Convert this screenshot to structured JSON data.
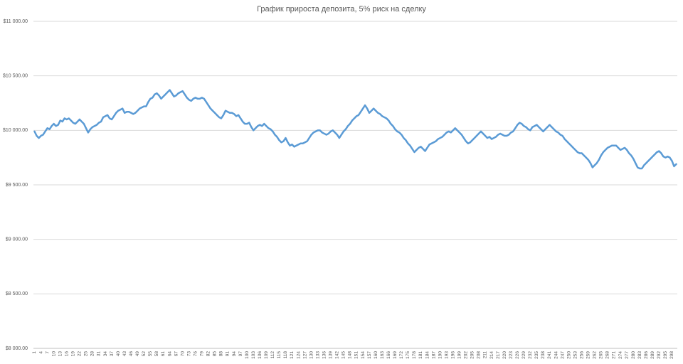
{
  "chart_data": {
    "type": "line",
    "title": "График прироста депозита, 5% риск на сделку",
    "categories": [
      1,
      null,
      null,
      4,
      null,
      null,
      7,
      null,
      null,
      10,
      null,
      null,
      13,
      null,
      null,
      16,
      null,
      null,
      19,
      null,
      null,
      22,
      null,
      null,
      25,
      null,
      null,
      28,
      null,
      null,
      31,
      null,
      null,
      34,
      null,
      null,
      37,
      null,
      null,
      40,
      null,
      null,
      43,
      null,
      null,
      46,
      null,
      null,
      49,
      null,
      null,
      52,
      null,
      null,
      55,
      null,
      null,
      58,
      null,
      null,
      61,
      null,
      null,
      64,
      null,
      null,
      67,
      null,
      null,
      70,
      null,
      null,
      73,
      null,
      null,
      76,
      null,
      null,
      79,
      null,
      null,
      82,
      null,
      null,
      85,
      null,
      null,
      88,
      null,
      null,
      91,
      null,
      null,
      94,
      null,
      null,
      97,
      null,
      null,
      100,
      null,
      null,
      103,
      null,
      null,
      106,
      null,
      null,
      109,
      null,
      null,
      112,
      null,
      null,
      115,
      null,
      null,
      118,
      null,
      null,
      121,
      null,
      null,
      124,
      null,
      null,
      127,
      null,
      null,
      130,
      null,
      null,
      133,
      null,
      null,
      136,
      null,
      null,
      139,
      null,
      null,
      142,
      null,
      null,
      145,
      null,
      null,
      148,
      null,
      null,
      151,
      null,
      null,
      154,
      null,
      null,
      157,
      null,
      null,
      160,
      null,
      null,
      163,
      null,
      null,
      166,
      null,
      null,
      169,
      null,
      null,
      172,
      null,
      null,
      175,
      null,
      null,
      178,
      null,
      null,
      181,
      null,
      null,
      184,
      null,
      null,
      187,
      null,
      null,
      190,
      null,
      null,
      193,
      null,
      null,
      196,
      null,
      null,
      199,
      null,
      null,
      202,
      null,
      null,
      205,
      null,
      null,
      208,
      null,
      null,
      211,
      null,
      null,
      214,
      null,
      null,
      217,
      null,
      null,
      220,
      null,
      null,
      223,
      null,
      null,
      226,
      null,
      null,
      229,
      null,
      null,
      232,
      null,
      null,
      235,
      null,
      null,
      238,
      null,
      null,
      241,
      null,
      null,
      244,
      null,
      null,
      247,
      null,
      null,
      250,
      null,
      null,
      253,
      null,
      null,
      256,
      null,
      null,
      259,
      null,
      null,
      262,
      null,
      null,
      265,
      null,
      null,
      268,
      null,
      null,
      271,
      null,
      null,
      274,
      null,
      null,
      277,
      null,
      null,
      280,
      null,
      null,
      283,
      null,
      null,
      286,
      null,
      null,
      289,
      null,
      null,
      292,
      null,
      null,
      295,
      null,
      null,
      298,
      null,
      null
    ],
    "series": [
      {
        "color": "#5b9bd5",
        "values": [
          9990,
          9950,
          9930,
          9950,
          9960,
          9990,
          10020,
          10010,
          10040,
          10060,
          10040,
          10050,
          10090,
          10080,
          10110,
          10100,
          10110,
          10090,
          10070,
          10060,
          10080,
          10100,
          10080,
          10060,
          10020,
          9980,
          10010,
          10030,
          10040,
          10050,
          10070,
          10080,
          10120,
          10130,
          10140,
          10110,
          10100,
          10130,
          10160,
          10180,
          10190,
          10200,
          10160,
          10170,
          10170,
          10160,
          10150,
          10160,
          10180,
          10200,
          10210,
          10220,
          10220,
          10260,
          10290,
          10300,
          10330,
          10340,
          10320,
          10290,
          10310,
          10330,
          10350,
          10370,
          10340,
          10310,
          10320,
          10340,
          10350,
          10360,
          10330,
          10300,
          10280,
          10270,
          10290,
          10300,
          10290,
          10290,
          10300,
          10290,
          10260,
          10230,
          10200,
          10180,
          10160,
          10140,
          10120,
          10110,
          10140,
          10180,
          10170,
          10160,
          10160,
          10150,
          10130,
          10140,
          10110,
          10080,
          10060,
          10060,
          10070,
          10030,
          10000,
          10020,
          10040,
          10050,
          10040,
          10060,
          10040,
          10020,
          10010,
          9990,
          9960,
          9940,
          9910,
          9890,
          9900,
          9930,
          9890,
          9860,
          9870,
          9850,
          9860,
          9870,
          9880,
          9880,
          9890,
          9900,
          9930,
          9960,
          9980,
          9990,
          10000,
          10000,
          9980,
          9970,
          9960,
          9970,
          9990,
          10000,
          9980,
          9960,
          9930,
          9960,
          9990,
          10010,
          10040,
          10060,
          10090,
          10110,
          10130,
          10140,
          10170,
          10200,
          10230,
          10200,
          10160,
          10180,
          10200,
          10180,
          10160,
          10150,
          10130,
          10120,
          10110,
          10090,
          10060,
          10040,
          10010,
          9990,
          9980,
          9960,
          9930,
          9910,
          9880,
          9860,
          9830,
          9800,
          9820,
          9840,
          9850,
          9830,
          9810,
          9840,
          9870,
          9880,
          9890,
          9900,
          9920,
          9930,
          9940,
          9960,
          9980,
          9990,
          9980,
          10000,
          10020,
          10000,
          9980,
          9960,
          9930,
          9900,
          9880,
          9890,
          9910,
          9930,
          9950,
          9970,
          9990,
          9970,
          9950,
          9930,
          9940,
          9920,
          9930,
          9940,
          9960,
          9970,
          9960,
          9950,
          9950,
          9960,
          9980,
          9990,
          10020,
          10050,
          10070,
          10060,
          10040,
          10030,
          10010,
          10000,
          10030,
          10040,
          10050,
          10030,
          10010,
          9990,
          10010,
          10030,
          10050,
          10030,
          10010,
          9990,
          9980,
          9960,
          9950,
          9920,
          9900,
          9880,
          9860,
          9840,
          9820,
          9800,
          9790,
          9790,
          9770,
          9750,
          9730,
          9700,
          9660,
          9680,
          9700,
          9730,
          9770,
          9800,
          9820,
          9840,
          9850,
          9860,
          9860,
          9860,
          9840,
          9820,
          9830,
          9840,
          9820,
          9790,
          9770,
          9740,
          9700,
          9660,
          9650,
          9650,
          9680,
          9700,
          9720,
          9740,
          9760,
          9780,
          9800,
          9810,
          9790,
          9760,
          9750,
          9760,
          9750,
          9720,
          9670,
          9690
        ]
      }
    ],
    "ylim": [
      8000,
      11000
    ],
    "yticks": [
      {
        "value": 8000,
        "label": "$8 000.00"
      },
      {
        "value": 8500,
        "label": "$8 500.00"
      },
      {
        "value": 9000,
        "label": "$9 000.00"
      },
      {
        "value": 9500,
        "label": "$9 500.00"
      },
      {
        "value": 10000,
        "label": "$10 000.00"
      },
      {
        "value": 10500,
        "label": "$10 500.00"
      },
      {
        "value": 11000,
        "label": "$11 000.00"
      }
    ],
    "grid": true
  }
}
